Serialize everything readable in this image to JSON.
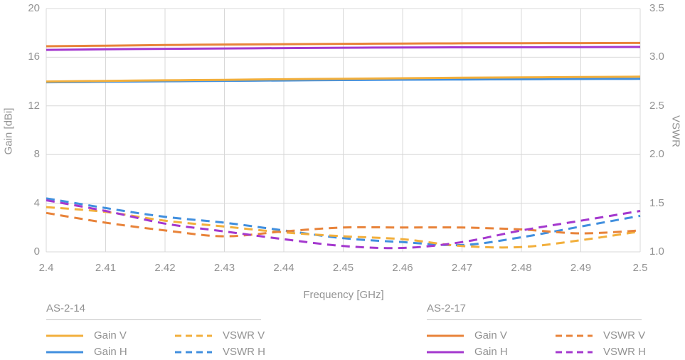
{
  "chart_data": {
    "type": "line",
    "x_label": "Frequency [GHz]",
    "y_left_label": "Gain [dBi]",
    "y_right_label": "VSWR",
    "x_ticks": [
      "2.4",
      "2.41",
      "2.42",
      "2.43",
      "2.44",
      "2.45",
      "2.46",
      "2.47",
      "2.48",
      "2.49",
      "2.5"
    ],
    "y_left_ticks": [
      "20",
      "16",
      "12",
      "8",
      "4",
      "0"
    ],
    "y_right_ticks": [
      "3.5",
      "3.0",
      "2.5",
      "2.0",
      "1.5",
      "1.0"
    ],
    "x_range": [
      2.4,
      2.5
    ],
    "y_left_range": [
      0,
      20
    ],
    "y_right_range": [
      1.0,
      3.5
    ],
    "grid": true,
    "x": [
      2.4,
      2.41,
      2.42,
      2.43,
      2.44,
      2.45,
      2.46,
      2.47,
      2.48,
      2.49,
      2.5
    ],
    "series": [
      {
        "name": "AS-2-14 Gain H",
        "group": "AS-2-14",
        "label": "Gain H",
        "axis": "left",
        "style": "solid",
        "color": "#418FDE",
        "values": [
          13.94,
          13.98,
          14.02,
          14.06,
          14.09,
          14.12,
          14.15,
          14.17,
          14.19,
          14.21,
          14.22
        ]
      },
      {
        "name": "AS-2-14 Gain V",
        "group": "AS-2-14",
        "label": "Gain V",
        "axis": "left",
        "style": "solid",
        "color": "#F2AF3C",
        "values": [
          14.0,
          14.05,
          14.1,
          14.14,
          14.19,
          14.23,
          14.27,
          14.31,
          14.34,
          14.37,
          14.4
        ]
      },
      {
        "name": "AS-2-17 Gain H",
        "group": "AS-2-17",
        "label": "Gain H",
        "axis": "left",
        "style": "solid",
        "color": "#A438CE",
        "values": [
          16.6,
          16.65,
          16.69,
          16.72,
          16.75,
          16.78,
          16.8,
          16.81,
          16.82,
          16.83,
          16.84
        ]
      },
      {
        "name": "AS-2-17 Gain V",
        "group": "AS-2-17",
        "label": "Gain V",
        "axis": "left",
        "style": "solid",
        "color": "#E8833A",
        "values": [
          16.9,
          16.95,
          17.0,
          17.04,
          17.07,
          17.1,
          17.12,
          17.14,
          17.15,
          17.16,
          17.17
        ]
      },
      {
        "name": "AS-2-14 VSWR H",
        "group": "AS-2-14",
        "label": "VSWR H",
        "axis": "right",
        "style": "dashed",
        "color": "#418FDE",
        "values": [
          1.55,
          1.45,
          1.36,
          1.3,
          1.22,
          1.14,
          1.1,
          1.07,
          1.15,
          1.26,
          1.37
        ]
      },
      {
        "name": "AS-2-14 VSWR V",
        "group": "AS-2-14",
        "label": "VSWR V",
        "axis": "right",
        "style": "dashed",
        "color": "#F2AF3C",
        "values": [
          1.46,
          1.41,
          1.32,
          1.26,
          1.2,
          1.16,
          1.13,
          1.06,
          1.05,
          1.12,
          1.21
        ]
      },
      {
        "name": "AS-2-17 VSWR V",
        "group": "AS-2-17",
        "label": "VSWR V",
        "axis": "right",
        "style": "dashed",
        "color": "#E8833A",
        "values": [
          1.4,
          1.3,
          1.22,
          1.16,
          1.21,
          1.25,
          1.25,
          1.25,
          1.23,
          1.19,
          1.22
        ]
      },
      {
        "name": "AS-2-17 VSWR H",
        "group": "AS-2-17",
        "label": "VSWR H",
        "axis": "right",
        "style": "dashed",
        "color": "#A438CE",
        "values": [
          1.53,
          1.42,
          1.29,
          1.21,
          1.13,
          1.06,
          1.04,
          1.1,
          1.22,
          1.32,
          1.42
        ]
      }
    ]
  },
  "legend": {
    "groups": [
      {
        "title": "AS-2-14",
        "items": [
          {
            "label": "Gain V",
            "color": "#F2AF3C",
            "style": "solid"
          },
          {
            "label": "Gain H",
            "color": "#418FDE",
            "style": "solid"
          },
          {
            "label": "VSWR V",
            "color": "#F2AF3C",
            "style": "dashed"
          },
          {
            "label": "VSWR H",
            "color": "#418FDE",
            "style": "dashed"
          }
        ]
      },
      {
        "title": "AS-2-17",
        "items": [
          {
            "label": "Gain V",
            "color": "#E8833A",
            "style": "solid"
          },
          {
            "label": "Gain H",
            "color": "#A438CE",
            "style": "solid"
          },
          {
            "label": "VSWR V",
            "color": "#E8833A",
            "style": "dashed"
          },
          {
            "label": "VSWR H",
            "color": "#A438CE",
            "style": "dashed"
          }
        ]
      }
    ]
  },
  "colors": {
    "grid": "#D8D8D8",
    "text": "#929292",
    "divider": "#C6C6C6"
  }
}
